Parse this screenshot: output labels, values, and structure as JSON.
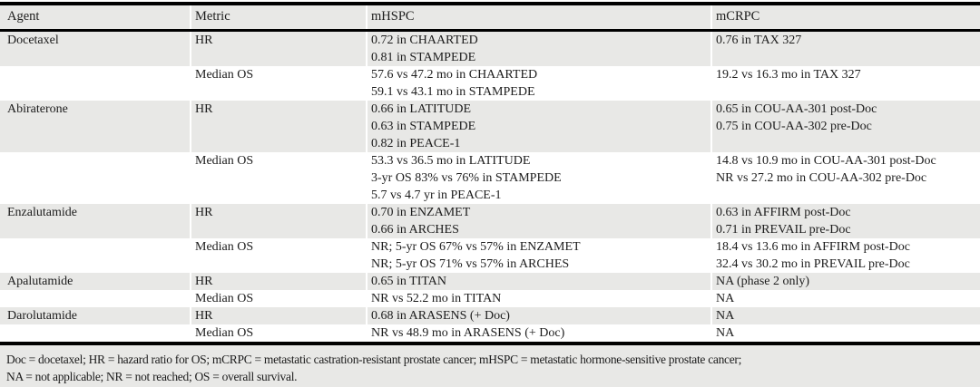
{
  "colors": {
    "shaded_row": "#e8e8e6",
    "row_white": "#ffffff",
    "rule": "#000000",
    "text": "#1c1c1c",
    "footer_bg": "#e8e8e6"
  },
  "table": {
    "columns": [
      {
        "key": "agent",
        "label": "Agent"
      },
      {
        "key": "metric",
        "label": "Metric"
      },
      {
        "key": "mhspc",
        "label": "mHSPC"
      },
      {
        "key": "mcrpc",
        "label": "mCRPC"
      }
    ],
    "rows": [
      {
        "agent": "Docetaxel",
        "metric": "HR",
        "shaded": true,
        "mhspc": [
          "0.72 in CHAARTED",
          "0.81 in STAMPEDE"
        ],
        "mcrpc": [
          "0.76 in TAX 327"
        ]
      },
      {
        "agent": "",
        "metric": "Median OS",
        "shaded": false,
        "mhspc": [
          "57.6 vs 47.2 mo in CHAARTED",
          "59.1 vs 43.1 mo in STAMPEDE"
        ],
        "mcrpc": [
          "19.2 vs 16.3 mo in TAX 327"
        ]
      },
      {
        "agent": "Abiraterone",
        "metric": "HR",
        "shaded": true,
        "mhspc": [
          "0.66 in LATITUDE",
          "0.63 in STAMPEDE",
          "0.82 in PEACE-1"
        ],
        "mcrpc": [
          "0.65 in COU-AA-301 post-Doc",
          "0.75 in COU-AA-302 pre-Doc"
        ]
      },
      {
        "agent": "",
        "metric": "Median OS",
        "shaded": false,
        "mhspc": [
          "53.3 vs 36.5 mo in LATITUDE",
          "3-yr OS 83% vs 76% in STAMPEDE",
          "5.7 vs 4.7 yr in PEACE-1"
        ],
        "mcrpc": [
          "14.8 vs 10.9 mo in COU-AA-301 post-Doc",
          "NR vs 27.2 mo in COU-AA-302 pre-Doc"
        ]
      },
      {
        "agent": "Enzalutamide",
        "metric": "HR",
        "shaded": true,
        "mhspc": [
          "0.70 in ENZAMET",
          "0.66 in ARCHES"
        ],
        "mcrpc": [
          "0.63 in AFFIRM post-Doc",
          "0.71 in PREVAIL pre-Doc"
        ]
      },
      {
        "agent": "",
        "metric": "Median OS",
        "shaded": false,
        "mhspc": [
          "NR; 5-yr OS 67% vs 57% in ENZAMET",
          "NR; 5-yr OS 71% vs 57% in ARCHES"
        ],
        "mcrpc": [
          "18.4 vs 13.6 mo in AFFIRM post-Doc",
          "32.4 vs 30.2 mo in PREVAIL pre-Doc"
        ]
      },
      {
        "agent": "Apalutamide",
        "metric": "HR",
        "shaded": true,
        "mhspc": [
          "0.65 in TITAN"
        ],
        "mcrpc": [
          "NA (phase 2 only)"
        ]
      },
      {
        "agent": "",
        "metric": "Median OS",
        "shaded": false,
        "mhspc": [
          "NR vs 52.2 mo in TITAN"
        ],
        "mcrpc": [
          "NA"
        ]
      },
      {
        "agent": "Darolutamide",
        "metric": "HR",
        "shaded": true,
        "mhspc": [
          "0.68 in ARASENS (+ Doc)"
        ],
        "mcrpc": [
          "NA"
        ]
      },
      {
        "agent": "",
        "metric": "Median OS",
        "shaded": false,
        "mhspc": [
          "NR vs 48.9 mo in ARASENS (+ Doc)"
        ],
        "mcrpc": [
          "NA"
        ]
      }
    ]
  },
  "footnote": {
    "lines": [
      "Doc = docetaxel; HR = hazard ratio for OS; mCRPC = metastatic castration-resistant prostate cancer; mHSPC = metastatic hormone-sensitive prostate cancer;",
      "NA = not applicable; NR = not reached; OS = overall survival."
    ]
  }
}
